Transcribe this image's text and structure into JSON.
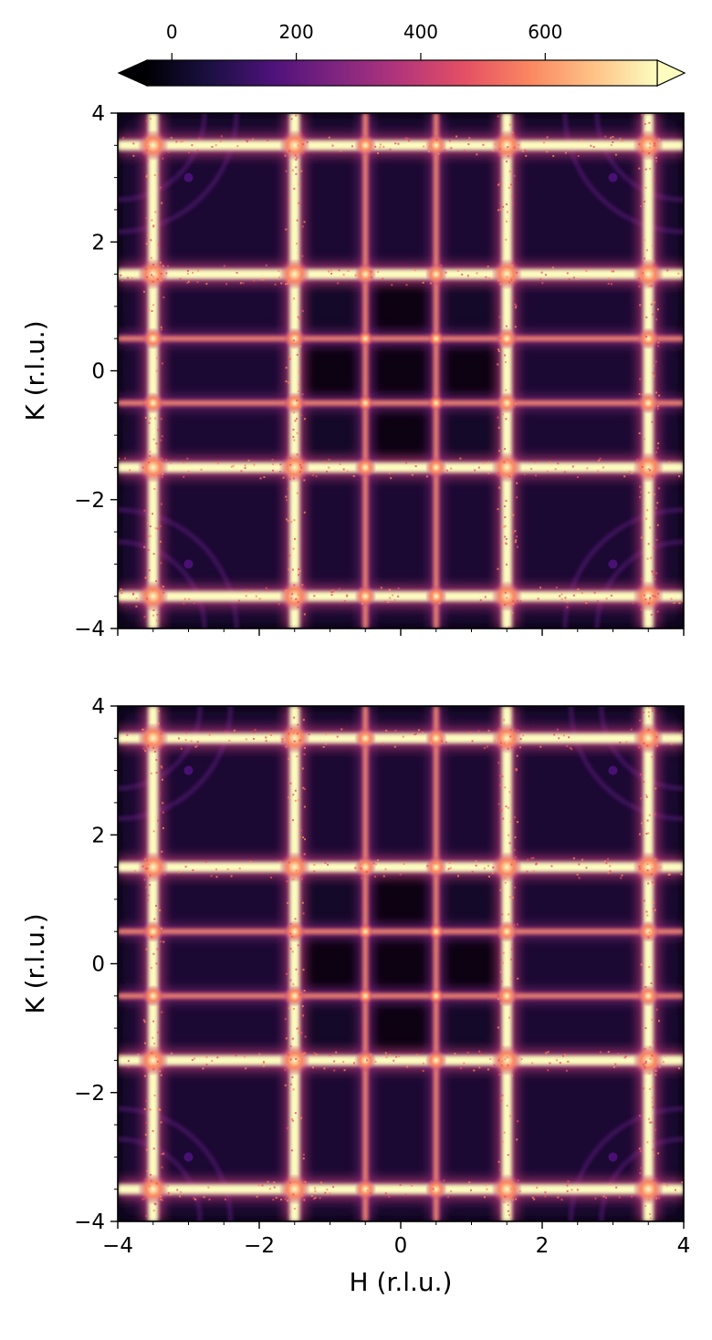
{
  "chart_data": [
    {
      "type": "heatmap",
      "panel": "top",
      "xlabel": "",
      "ylabel": "K (r.l.u.)",
      "xlim": [
        -4,
        4
      ],
      "ylim": [
        -4,
        4
      ],
      "xticks": [
        "−4",
        "−2",
        "0",
        "2",
        "4"
      ],
      "yticks": [
        "−4",
        "−2",
        "0",
        "2",
        "4"
      ],
      "xtick_labels_shown": false,
      "lines_at": [
        -3.5,
        -1.5,
        -0.5,
        0.5,
        1.5,
        3.5
      ],
      "strong_lines_at": [
        -3.5,
        -1.5,
        1.5,
        3.5
      ],
      "weak_lines_at": [
        -0.5,
        0.5
      ]
    },
    {
      "type": "heatmap",
      "panel": "bottom",
      "xlabel": "H (r.l.u.)",
      "ylabel": "K (r.l.u.)",
      "xlim": [
        -4,
        4
      ],
      "ylim": [
        -4,
        4
      ],
      "xticks": [
        "−4",
        "−2",
        "0",
        "2",
        "4"
      ],
      "yticks": [
        "−4",
        "−2",
        "0",
        "2",
        "4"
      ],
      "xtick_labels_shown": true,
      "lines_at": [
        -3.5,
        -1.5,
        -0.5,
        0.5,
        1.5,
        3.5
      ],
      "strong_lines_at": [
        -3.5,
        -1.5,
        1.5,
        3.5
      ],
      "weak_lines_at": [
        -0.5,
        0.5
      ]
    }
  ],
  "colorbar": {
    "colormap": "magma",
    "ticks": [
      0,
      200,
      400,
      600
    ],
    "tick_labels": [
      "0",
      "200",
      "400",
      "600"
    ],
    "range": [
      -40,
      780
    ],
    "extend": "both",
    "orientation": "horizontal",
    "position": "top"
  },
  "colors": {
    "magma": [
      "#000004",
      "#1c1044",
      "#4f127b",
      "#812581",
      "#b5367a",
      "#e55064",
      "#fb8761",
      "#fec287",
      "#fcfdbf"
    ]
  }
}
